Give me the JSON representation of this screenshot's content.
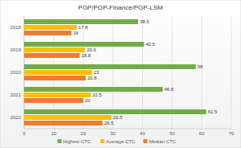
{
  "chart_data": {
    "type": "bar",
    "orientation": "horizontal",
    "title": "PGP/PGP-Finance/PGP-LSM",
    "categories": [
      "2018",
      "2019",
      "2020",
      "2021",
      "2022"
    ],
    "series": [
      {
        "name": "Highest CTC",
        "color": "#70ad47",
        "values": [
          38.5,
          40.5,
          58,
          46.8,
          61.5
        ]
      },
      {
        "name": "Average CTC",
        "color": "#ffc000",
        "values": [
          17.8,
          20.6,
          23,
          22.5,
          29.5
        ]
      },
      {
        "name": "Median CTC",
        "color": "#ed7d31",
        "values": [
          16,
          18.8,
          20.8,
          20,
          26.5
        ]
      }
    ],
    "xlim": [
      0,
      70
    ],
    "xticks": [
      0,
      10,
      20,
      30,
      40,
      50,
      60,
      70
    ],
    "grid": true,
    "data_labels": true,
    "legend": "bottom"
  }
}
